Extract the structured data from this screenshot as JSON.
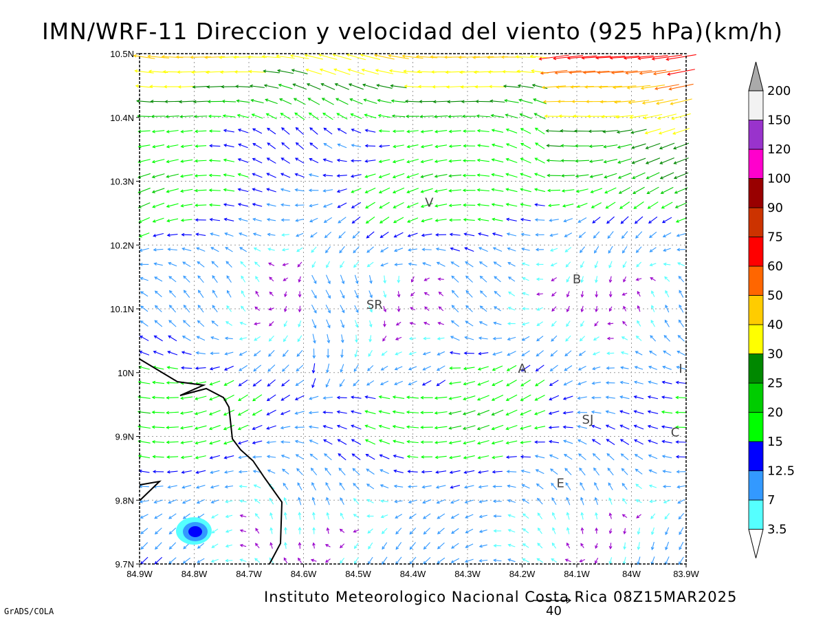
{
  "title": "IMN/WRF-11 Direccion y velocidad del viento (925 hPa)(km/h)",
  "footer": "Instituto Meteorologico Nacional Costa Rica 08Z15MAR2025",
  "credit": "GrADS/COLA",
  "reference_vector_label": "40",
  "axes": {
    "x_ticks": [
      "84.9W",
      "84.8W",
      "84.7W",
      "84.6W",
      "84.5W",
      "84.4W",
      "84.3W",
      "84.2W",
      "84.1W",
      "84W",
      "83.9W"
    ],
    "y_ticks": [
      "10.5N",
      "10.4N",
      "10.3N",
      "10.2N",
      "10.1N",
      "10N",
      "9.9N",
      "9.8N",
      "9.7N"
    ]
  },
  "stations": [
    {
      "label": "V",
      "lon": -84.37,
      "lat": 10.26
    },
    {
      "label": "SR",
      "lon": -84.47,
      "lat": 10.1
    },
    {
      "label": "B",
      "lon": -84.1,
      "lat": 10.14
    },
    {
      "label": "A",
      "lon": -84.2,
      "lat": 10.0
    },
    {
      "label": "I",
      "lon": -83.91,
      "lat": 10.0
    },
    {
      "label": "SJ",
      "lon": -84.08,
      "lat": 9.92
    },
    {
      "label": "C",
      "lon": -83.92,
      "lat": 9.9
    },
    {
      "label": "E",
      "lon": -84.13,
      "lat": 9.82
    }
  ],
  "colorbar": {
    "levels": [
      "3.5",
      "7",
      "12.5",
      "15",
      "20",
      "25",
      "30",
      "40",
      "50",
      "60",
      "75",
      "90",
      "100",
      "120",
      "150",
      "200"
    ],
    "colors": [
      "#55ffff",
      "#3399ff",
      "#0000ff",
      "#00ff00",
      "#00cc00",
      "#008800",
      "#ffff00",
      "#ffcc00",
      "#ff6600",
      "#ff0000",
      "#cc3300",
      "#990000",
      "#ff00cc",
      "#9933cc",
      "#f2f2f2",
      "#aaaaaa"
    ]
  }
}
